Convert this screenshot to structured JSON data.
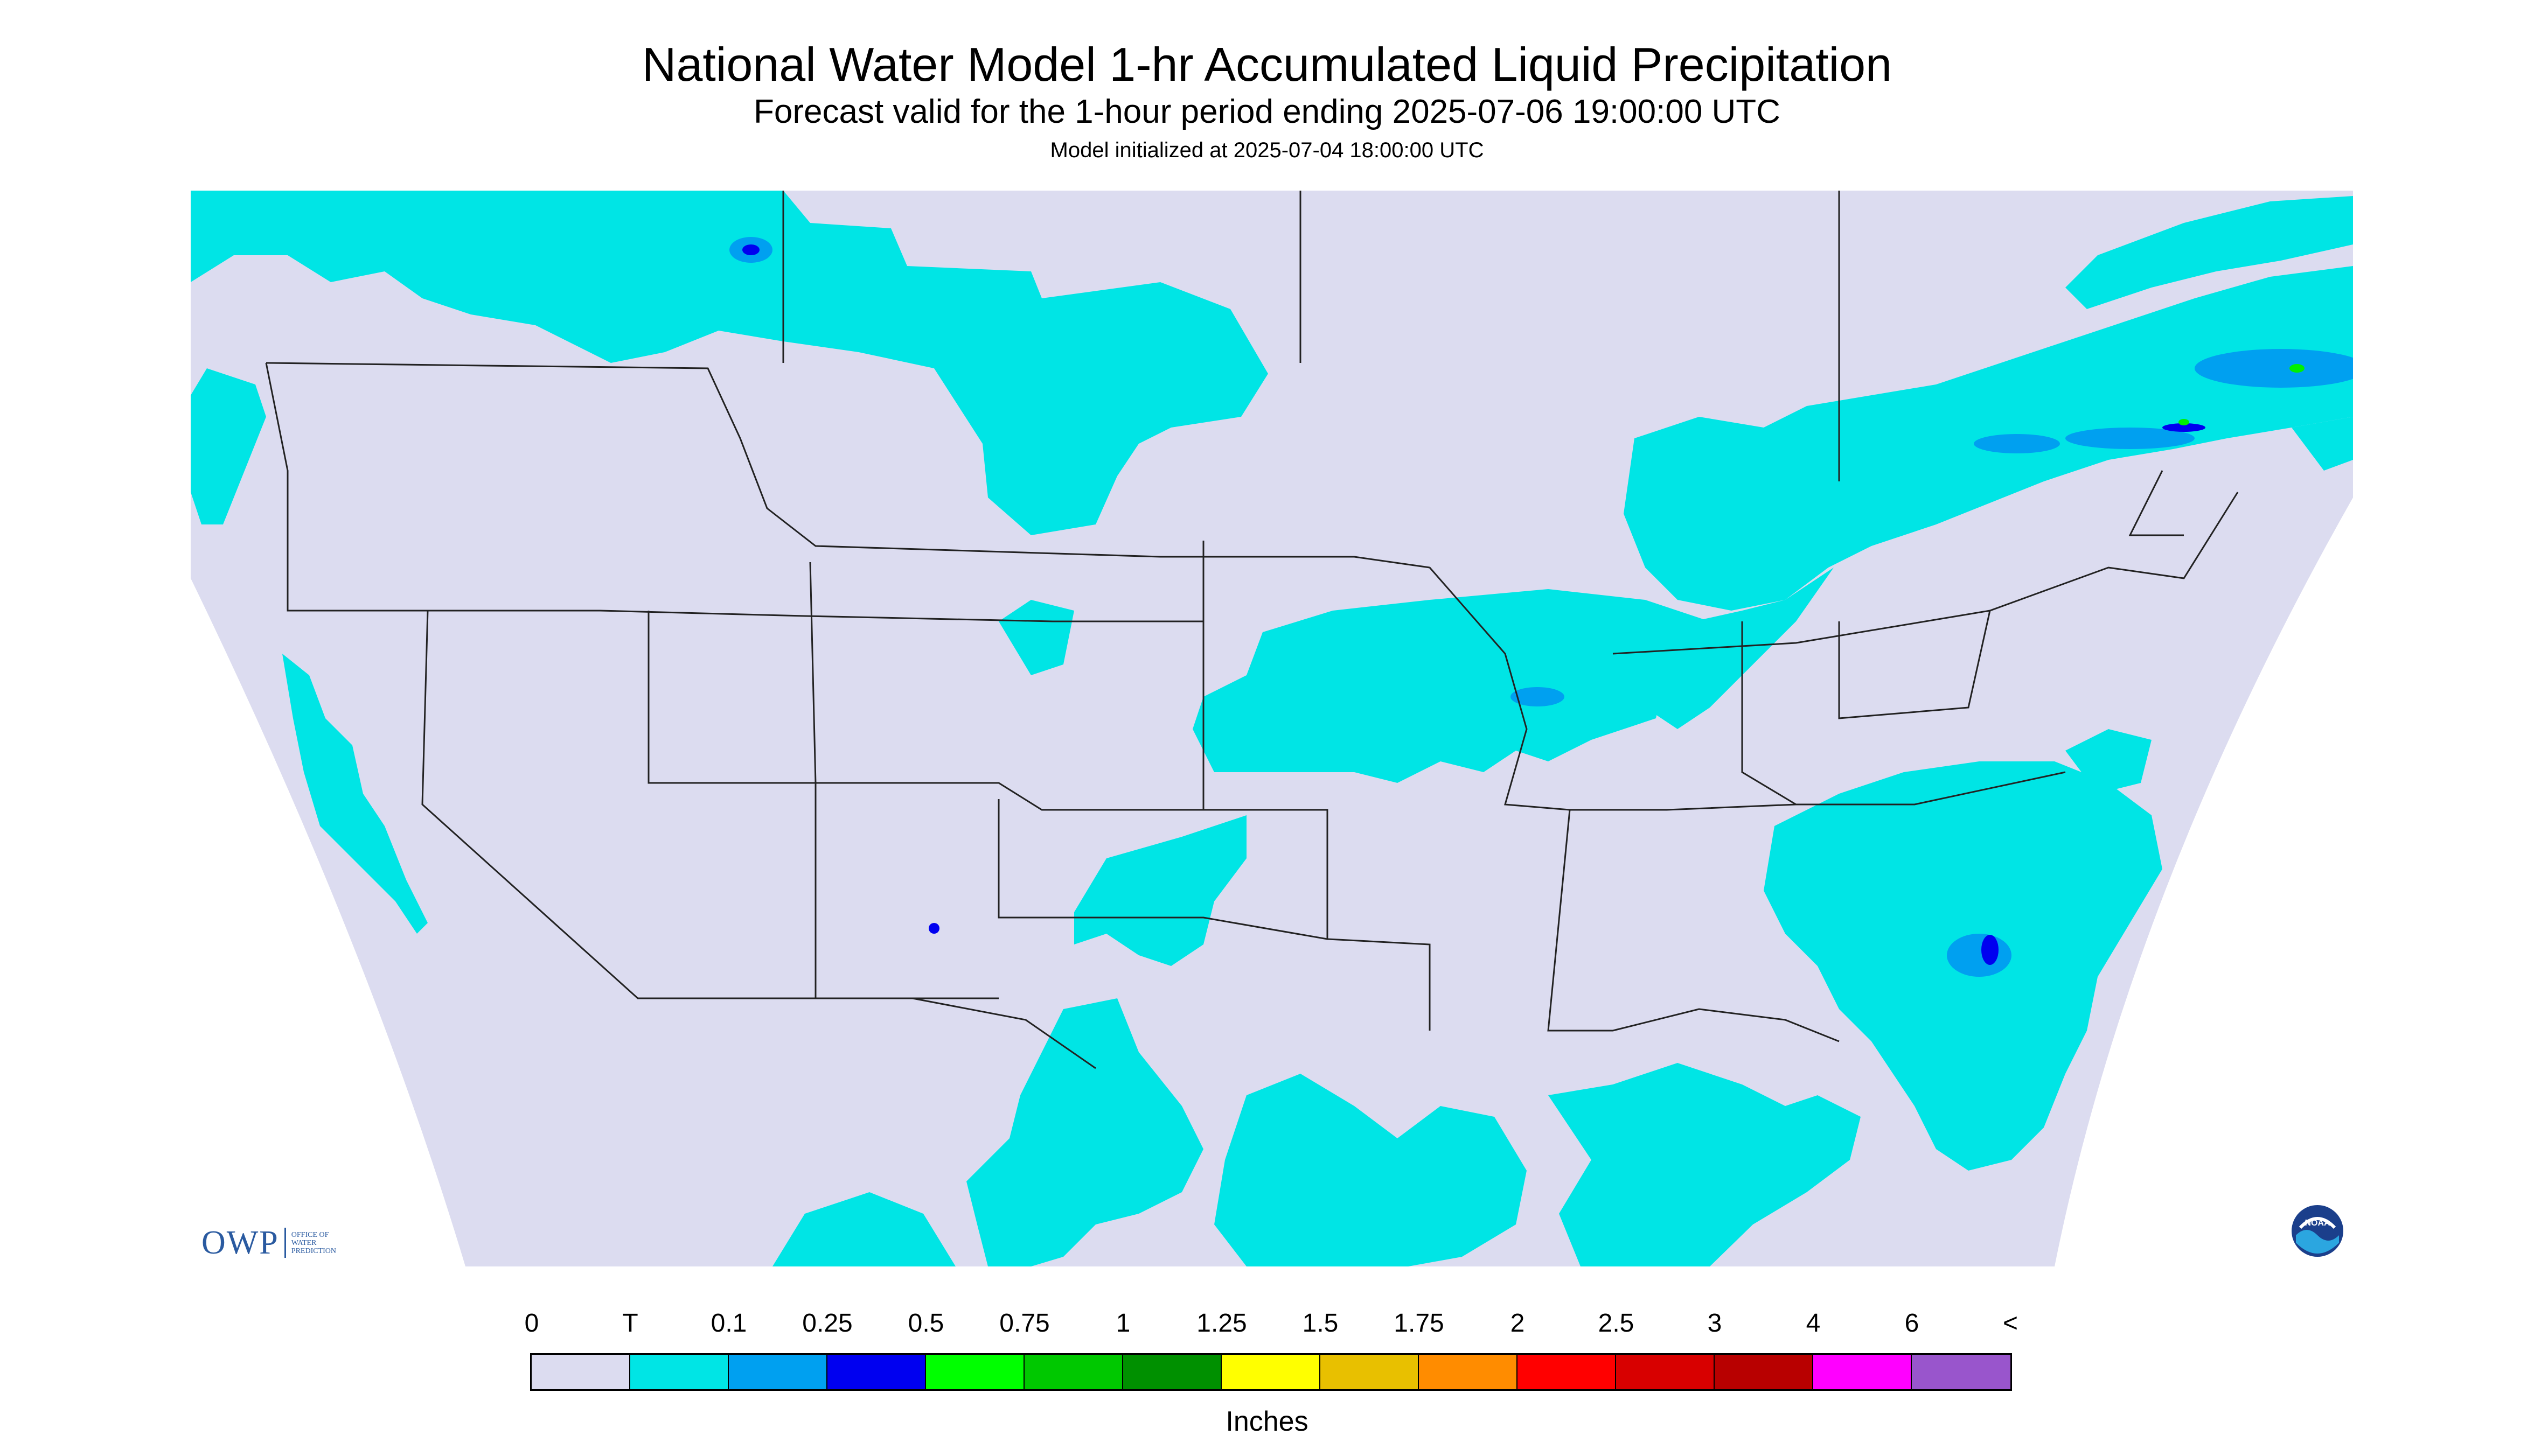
{
  "header": {
    "title": "National Water Model 1-hr Accumulated Liquid Precipitation",
    "subtitle": "Forecast valid for the 1-hour period ending 2025-07-06 19:00:00 UTC",
    "init": "Model initialized at 2025-07-04 18:00:00 UTC"
  },
  "map": {
    "background_color": "#dcdcf0",
    "outside_color": "#ffffff",
    "trace_color": "#00e5e5",
    "light_blue_color": "#00a0f0",
    "blue_color": "#0000f0",
    "green_color": "#00f000",
    "boundary_color": "#222222"
  },
  "logos": {
    "owp_big": "OWP",
    "owp_line1": "Office of",
    "owp_line2": "Water",
    "owp_line3": "Prediction",
    "noaa_text": "NOAA",
    "noaa_icon": "noaa-logo-icon"
  },
  "colorbar": {
    "labels": [
      "0",
      "T",
      "0.1",
      "0.25",
      "0.5",
      "0.75",
      "1",
      "1.25",
      "1.5",
      "1.75",
      "2",
      "2.5",
      "3",
      "4",
      "6",
      "<"
    ],
    "colors": [
      "#dcdcf0",
      "#00e5e5",
      "#00a0f0",
      "#0000f0",
      "#00ff00",
      "#00c800",
      "#009000",
      "#ffff00",
      "#e8c000",
      "#ff8c00",
      "#ff0000",
      "#d80000",
      "#b80000",
      "#ff00ff",
      "#9955cc"
    ],
    "units": "Inches"
  }
}
